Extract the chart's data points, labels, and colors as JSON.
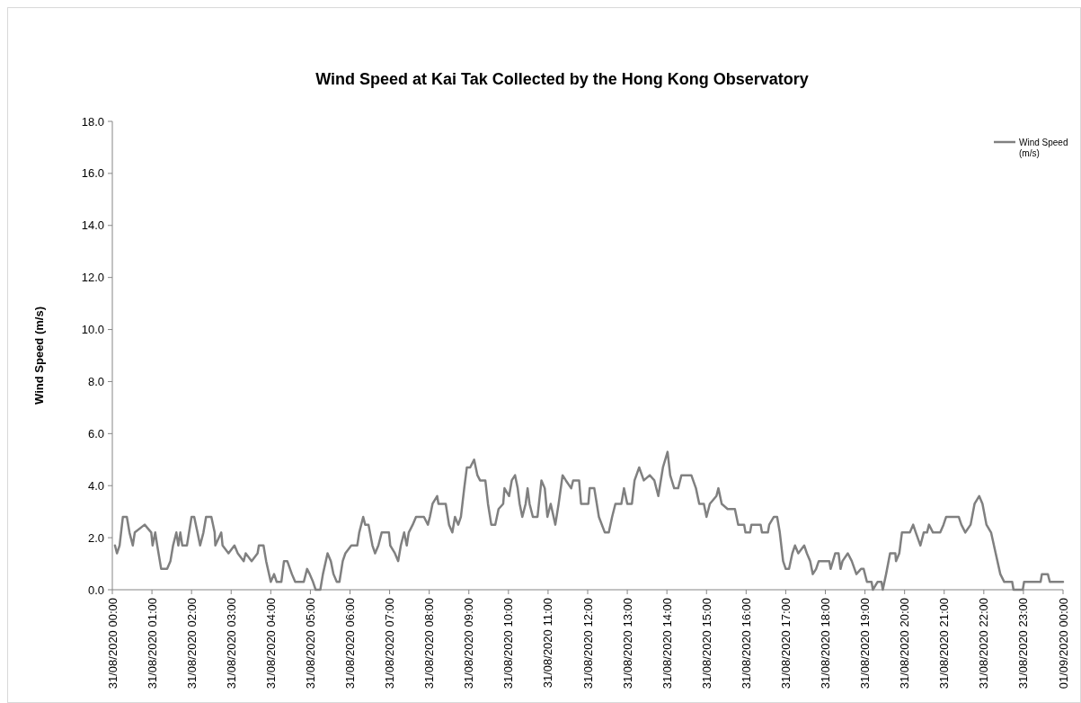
{
  "chart_data": {
    "type": "line",
    "title": "Wind Speed at Kai Tak Collected by the Hong Kong Observatory",
    "ylabel": "Wind Speed (m/s)",
    "xlim": [
      "2020-08-31T00:00",
      "2020-09-01T00:00"
    ],
    "xticks": [
      {
        "value": "2020-08-31T00:00",
        "label": "31/08/2020 00:00"
      },
      {
        "value": "2020-08-31T01:00",
        "label": "31/08/2020 01:00"
      },
      {
        "value": "2020-08-31T02:00",
        "label": "31/08/2020 02:00"
      },
      {
        "value": "2020-08-31T03:00",
        "label": "31/08/2020 03:00"
      },
      {
        "value": "2020-08-31T04:00",
        "label": "31/08/2020 04:00"
      },
      {
        "value": "2020-08-31T05:00",
        "label": "31/08/2020 05:00"
      },
      {
        "value": "2020-08-31T06:00",
        "label": "31/08/2020 06:00"
      },
      {
        "value": "2020-08-31T07:00",
        "label": "31/08/2020 07:00"
      },
      {
        "value": "2020-08-31T08:00",
        "label": "31/08/2020 08:00"
      },
      {
        "value": "2020-08-31T09:00",
        "label": "31/08/2020 09:00"
      },
      {
        "value": "2020-08-31T10:00",
        "label": "31/08/2020 10:00"
      },
      {
        "value": "2020-08-31T11:00",
        "label": "31/08/2020 11:00"
      },
      {
        "value": "2020-08-31T12:00",
        "label": "31/08/2020 12:00"
      },
      {
        "value": "2020-08-31T13:00",
        "label": "31/08/2020 13:00"
      },
      {
        "value": "2020-08-31T14:00",
        "label": "31/08/2020 14:00"
      },
      {
        "value": "2020-08-31T15:00",
        "label": "31/08/2020 15:00"
      },
      {
        "value": "2020-08-31T16:00",
        "label": "31/08/2020 16:00"
      },
      {
        "value": "2020-08-31T17:00",
        "label": "31/08/2020 17:00"
      },
      {
        "value": "2020-08-31T18:00",
        "label": "31/08/2020 18:00"
      },
      {
        "value": "2020-08-31T19:00",
        "label": "31/08/2020 19:00"
      },
      {
        "value": "2020-08-31T20:00",
        "label": "31/08/2020 20:00"
      },
      {
        "value": "2020-08-31T21:00",
        "label": "31/08/2020 21:00"
      },
      {
        "value": "2020-08-31T22:00",
        "label": "31/08/2020 22:00"
      },
      {
        "value": "2020-08-31T23:00",
        "label": "31/08/2020 23:00"
      },
      {
        "value": "2020-09-01T00:00",
        "label": "01/09/2020 00:00"
      }
    ],
    "ylim": [
      0,
      18
    ],
    "yticks": [
      {
        "value": 0,
        "label": "0.0"
      },
      {
        "value": 2,
        "label": "2.0"
      },
      {
        "value": 4,
        "label": "4.0"
      },
      {
        "value": 6,
        "label": "6.0"
      },
      {
        "value": 8,
        "label": "8.0"
      },
      {
        "value": 10,
        "label": "10.0"
      },
      {
        "value": 12,
        "label": "12.0"
      },
      {
        "value": 14,
        "label": "14.0"
      },
      {
        "value": 16,
        "label": "16.0"
      },
      {
        "value": 18,
        "label": "18.0"
      }
    ],
    "legend": "top right",
    "grid": false,
    "marker": "none",
    "line_style": "solid",
    "series": [
      {
        "name": "Wind Speed (m/s)",
        "color": "#808080",
        "x": [
          "2020-08-31T00:04",
          "2020-08-31T00:07",
          "2020-08-31T00:11",
          "2020-08-31T00:16",
          "2020-08-31T00:22",
          "2020-08-31T00:26",
          "2020-08-31T00:31",
          "2020-08-31T00:34",
          "2020-08-31T00:49",
          "2020-08-31T00:59",
          "2020-08-31T01:01",
          "2020-08-31T01:05",
          "2020-08-31T01:08",
          "2020-08-31T01:14",
          "2020-08-31T01:23",
          "2020-08-31T01:28",
          "2020-08-31T01:32",
          "2020-08-31T01:37",
          "2020-08-31T01:40",
          "2020-08-31T01:43",
          "2020-08-31T01:46",
          "2020-08-31T01:53",
          "2020-08-31T02:00",
          "2020-08-31T02:04",
          "2020-08-31T02:09",
          "2020-08-31T02:13",
          "2020-08-31T02:18",
          "2020-08-31T02:22",
          "2020-08-31T02:30",
          "2020-08-31T02:35",
          "2020-08-31T02:36",
          "2020-08-31T02:45",
          "2020-08-31T02:47",
          "2020-08-31T02:56",
          "2020-08-31T03:05",
          "2020-08-31T03:10",
          "2020-08-31T03:19",
          "2020-08-31T03:22",
          "2020-08-31T03:31",
          "2020-08-31T03:40",
          "2020-08-31T03:42",
          "2020-08-31T03:49",
          "2020-08-31T03:53",
          "2020-08-31T04:00",
          "2020-08-31T04:05",
          "2020-08-31T04:09",
          "2020-08-31T04:16",
          "2020-08-31T04:20",
          "2020-08-31T04:25",
          "2020-08-31T04:32",
          "2020-08-31T04:37",
          "2020-08-31T04:50",
          "2020-08-31T04:55",
          "2020-08-31T04:59",
          "2020-08-31T05:04",
          "2020-08-31T05:08",
          "2020-08-31T05:15",
          "2020-08-31T05:19",
          "2020-08-31T05:26",
          "2020-08-31T05:31",
          "2020-08-31T05:35",
          "2020-08-31T05:40",
          "2020-08-31T05:44",
          "2020-08-31T05:49",
          "2020-08-31T05:53",
          "2020-08-31T06:02",
          "2020-08-31T06:11",
          "2020-08-31T06:14",
          "2020-08-31T06:20",
          "2020-08-31T06:23",
          "2020-08-31T06:28",
          "2020-08-31T06:34",
          "2020-08-31T06:38",
          "2020-08-31T06:43",
          "2020-08-31T06:48",
          "2020-08-31T06:59",
          "2020-08-31T07:01",
          "2020-08-31T07:08",
          "2020-08-31T07:13",
          "2020-08-31T07:17",
          "2020-08-31T07:22",
          "2020-08-31T07:26",
          "2020-08-31T07:29",
          "2020-08-31T07:35",
          "2020-08-31T07:40",
          "2020-08-31T07:52",
          "2020-08-31T07:58",
          "2020-08-31T08:01",
          "2020-08-31T08:05",
          "2020-08-31T08:12",
          "2020-08-31T08:14",
          "2020-08-31T08:25",
          "2020-08-31T08:30",
          "2020-08-31T08:35",
          "2020-08-31T08:39",
          "2020-08-31T08:44",
          "2020-08-31T08:48",
          "2020-08-31T08:53",
          "2020-08-31T08:57",
          "2020-08-31T09:02",
          "2020-08-31T09:08",
          "2020-08-31T09:13",
          "2020-08-31T09:17",
          "2020-08-31T09:25",
          "2020-08-31T09:29",
          "2020-08-31T09:34",
          "2020-08-31T09:40",
          "2020-08-31T09:45",
          "2020-08-31T09:52",
          "2020-08-31T09:54",
          "2020-08-31T10:01",
          "2020-08-31T10:05",
          "2020-08-31T10:10",
          "2020-08-31T10:14",
          "2020-08-31T10:17",
          "2020-08-31T10:21",
          "2020-08-31T10:26",
          "2020-08-31T10:29",
          "2020-08-31T10:32",
          "2020-08-31T10:37",
          "2020-08-31T10:44",
          "2020-08-31T10:50",
          "2020-08-31T10:55",
          "2020-08-31T10:59",
          "2020-08-31T11:04",
          "2020-08-31T11:11",
          "2020-08-31T11:16",
          "2020-08-31T11:22",
          "2020-08-31T11:27",
          "2020-08-31T11:35",
          "2020-08-31T11:38",
          "2020-08-31T11:47",
          "2020-08-31T11:50",
          "2020-08-31T12:01",
          "2020-08-31T12:03",
          "2020-08-31T12:10",
          "2020-08-31T12:17",
          "2020-08-31T12:26",
          "2020-08-31T12:32",
          "2020-08-31T12:37",
          "2020-08-31T12:42",
          "2020-08-31T12:51",
          "2020-08-31T12:55",
          "2020-08-31T13:00",
          "2020-08-31T13:07",
          "2020-08-31T13:11",
          "2020-08-31T13:18",
          "2020-08-31T13:25",
          "2020-08-31T13:34",
          "2020-08-31T13:41",
          "2020-08-31T13:47",
          "2020-08-31T13:54",
          "2020-08-31T14:01",
          "2020-08-31T14:05",
          "2020-08-31T14:11",
          "2020-08-31T14:17",
          "2020-08-31T14:22",
          "2020-08-31T14:37",
          "2020-08-31T14:44",
          "2020-08-31T14:49",
          "2020-08-31T14:56",
          "2020-08-31T15:00",
          "2020-08-31T15:05",
          "2020-08-31T15:15",
          "2020-08-31T15:18",
          "2020-08-31T15:23",
          "2020-08-31T15:32",
          "2020-08-31T15:43",
          "2020-08-31T15:48",
          "2020-08-31T15:57",
          "2020-08-31T15:59",
          "2020-08-31T16:06",
          "2020-08-31T16:08",
          "2020-08-31T16:22",
          "2020-08-31T16:24",
          "2020-08-31T16:33",
          "2020-08-31T16:35",
          "2020-08-31T16:42",
          "2020-08-31T16:47",
          "2020-08-31T16:51",
          "2020-08-31T16:56",
          "2020-08-31T17:00",
          "2020-08-31T17:05",
          "2020-08-31T17:10",
          "2020-08-31T17:14",
          "2020-08-31T17:19",
          "2020-08-31T17:28",
          "2020-08-31T17:32",
          "2020-08-31T17:37",
          "2020-08-31T17:41",
          "2020-08-31T17:46",
          "2020-08-31T17:50",
          "2020-08-31T18:06",
          "2020-08-31T18:08",
          "2020-08-31T18:15",
          "2020-08-31T18:20",
          "2020-08-31T18:23",
          "2020-08-31T18:26",
          "2020-08-31T18:34",
          "2020-08-31T18:40",
          "2020-08-31T18:47",
          "2020-08-31T18:54",
          "2020-08-31T18:58",
          "2020-08-31T19:03",
          "2020-08-31T19:10",
          "2020-08-31T19:12",
          "2020-08-31T19:19",
          "2020-08-31T19:25",
          "2020-08-31T19:27",
          "2020-08-31T19:32",
          "2020-08-31T19:38",
          "2020-08-31T19:46",
          "2020-08-31T19:47",
          "2020-08-31T19:52",
          "2020-08-31T19:56",
          "2020-08-31T20:08",
          "2020-08-31T20:13",
          "2020-08-31T20:17",
          "2020-08-31T20:24",
          "2020-08-31T20:29",
          "2020-08-31T20:34",
          "2020-08-31T20:37",
          "2020-08-31T20:43",
          "2020-08-31T20:54",
          "2020-08-31T20:59",
          "2020-08-31T21:03",
          "2020-08-31T21:22",
          "2020-08-31T21:26",
          "2020-08-31T21:32",
          "2020-08-31T21:40",
          "2020-08-31T21:46",
          "2020-08-31T21:53",
          "2020-08-31T21:58",
          "2020-08-31T22:04",
          "2020-08-31T22:11",
          "2020-08-31T22:18",
          "2020-08-31T22:25",
          "2020-08-31T22:31",
          "2020-08-31T22:43",
          "2020-08-31T22:45",
          "2020-08-31T22:59",
          "2020-08-31T23:01",
          "2020-08-31T23:26",
          "2020-08-31T23:28",
          "2020-08-31T23:37",
          "2020-08-31T23:40",
          "2020-09-01T00:00"
        ],
        "values": [
          1.7,
          1.4,
          1.7,
          2.8,
          2.8,
          2.2,
          1.7,
          2.2,
          2.5,
          2.2,
          1.7,
          2.2,
          1.7,
          0.8,
          0.8,
          1.1,
          1.7,
          2.2,
          1.7,
          2.2,
          1.7,
          1.7,
          2.8,
          2.8,
          2.2,
          1.7,
          2.2,
          2.8,
          2.8,
          2.2,
          1.7,
          2.2,
          1.7,
          1.4,
          1.7,
          1.4,
          1.1,
          1.4,
          1.1,
          1.4,
          1.7,
          1.7,
          1.1,
          0.3,
          0.6,
          0.3,
          0.3,
          1.1,
          1.1,
          0.6,
          0.3,
          0.3,
          0.8,
          0.6,
          0.3,
          0.0,
          0.0,
          0.6,
          1.4,
          1.1,
          0.6,
          0.3,
          0.3,
          1.1,
          1.4,
          1.7,
          1.7,
          2.2,
          2.8,
          2.5,
          2.5,
          1.7,
          1.4,
          1.7,
          2.2,
          2.2,
          1.7,
          1.4,
          1.1,
          1.7,
          2.2,
          1.7,
          2.2,
          2.5,
          2.8,
          2.8,
          2.5,
          2.8,
          3.3,
          3.6,
          3.3,
          3.3,
          2.5,
          2.2,
          2.8,
          2.5,
          2.8,
          3.9,
          4.7,
          4.7,
          5.0,
          4.4,
          4.2,
          4.2,
          3.3,
          2.5,
          2.5,
          3.1,
          3.3,
          3.9,
          3.6,
          4.2,
          4.4,
          3.9,
          3.3,
          2.8,
          3.3,
          3.9,
          3.3,
          2.8,
          2.8,
          4.2,
          3.9,
          2.8,
          3.3,
          2.5,
          3.3,
          4.4,
          4.2,
          3.9,
          4.2,
          4.2,
          3.3,
          3.3,
          3.9,
          3.9,
          2.8,
          2.2,
          2.2,
          2.8,
          3.3,
          3.3,
          3.9,
          3.3,
          3.3,
          4.2,
          4.7,
          4.2,
          4.4,
          4.2,
          3.6,
          4.7,
          5.3,
          4.4,
          3.9,
          3.9,
          4.4,
          4.4,
          3.9,
          3.3,
          3.3,
          2.8,
          3.3,
          3.6,
          3.9,
          3.3,
          3.1,
          3.1,
          2.5,
          2.5,
          2.2,
          2.2,
          2.5,
          2.5,
          2.2,
          2.2,
          2.5,
          2.8,
          2.8,
          2.2,
          1.1,
          0.8,
          0.8,
          1.4,
          1.7,
          1.4,
          1.7,
          1.4,
          1.1,
          0.6,
          0.8,
          1.1,
          1.1,
          0.8,
          1.4,
          1.4,
          0.8,
          1.1,
          1.4,
          1.1,
          0.6,
          0.8,
          0.8,
          0.3,
          0.3,
          0.0,
          0.3,
          0.3,
          0.0,
          0.6,
          1.4,
          1.4,
          1.1,
          1.4,
          2.2,
          2.2,
          2.5,
          2.2,
          1.7,
          2.2,
          2.2,
          2.5,
          2.2,
          2.2,
          2.5,
          2.8,
          2.8,
          2.5,
          2.2,
          2.5,
          3.3,
          3.6,
          3.3,
          2.5,
          2.2,
          1.4,
          0.6,
          0.3,
          0.3,
          0.0,
          0.0,
          0.3,
          0.3,
          0.6,
          0.6,
          0.3,
          0.3
        ]
      }
    ]
  }
}
